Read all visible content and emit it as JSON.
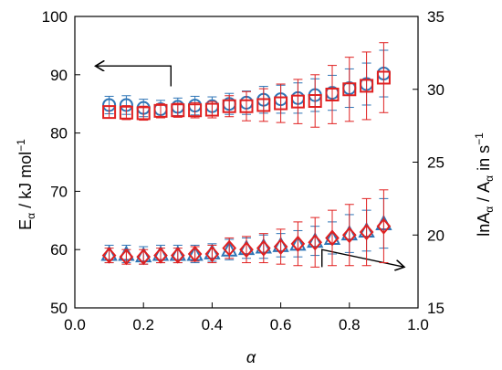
{
  "chart_data": {
    "type": "scatter",
    "xlabel": "α",
    "ylabel_left": {
      "main": "E",
      "sub": "α",
      "rest": " / kJ mol",
      "sup": "−1"
    },
    "ylabel_right": {
      "p1": "lnA",
      "s1": "α",
      "p2": " / A",
      "s2": "α",
      "p3": " in s",
      "sup": "−1"
    },
    "xlim": [
      0.0,
      1.0
    ],
    "ylim_left": [
      50,
      100
    ],
    "ylim_right": [
      15,
      35
    ],
    "x_ticks": [
      "0.0",
      "0.2",
      "0.4",
      "0.6",
      "0.8",
      "1.0"
    ],
    "y_ticks_left": [
      "50",
      "60",
      "70",
      "80",
      "90",
      "100"
    ],
    "y_ticks_right": [
      "15",
      "20",
      "25",
      "30",
      "35"
    ],
    "x": [
      0.1,
      0.15,
      0.2,
      0.25,
      0.3,
      0.35,
      0.4,
      0.45,
      0.5,
      0.55,
      0.6,
      0.65,
      0.7,
      0.75,
      0.8,
      0.85,
      0.9
    ],
    "series": [
      {
        "axis": "left",
        "marker": "circle",
        "color": "#2e75b6",
        "values": [
          84.8,
          84.8,
          84.3,
          84.1,
          84.5,
          84.7,
          84.6,
          85.0,
          85.2,
          85.7,
          85.8,
          86.0,
          86.5,
          86.9,
          87.7,
          88.4,
          90.2
        ],
        "err": [
          1.5,
          1.6,
          1.5,
          1.5,
          1.5,
          1.6,
          1.6,
          1.8,
          2.0,
          2.3,
          2.4,
          2.6,
          2.8,
          3.0,
          3.3,
          3.6,
          4.0
        ]
      },
      {
        "axis": "left",
        "marker": "square",
        "color": "#e02020",
        "values": [
          83.6,
          83.5,
          83.4,
          83.8,
          83.9,
          83.9,
          84.0,
          84.6,
          84.6,
          84.8,
          85.1,
          85.4,
          85.5,
          86.6,
          87.5,
          88.1,
          89.5
        ],
        "err": [
          1.0,
          1.2,
          1.2,
          1.2,
          1.2,
          1.3,
          1.4,
          1.8,
          2.5,
          2.8,
          3.3,
          3.8,
          4.5,
          5.0,
          5.5,
          5.8,
          6.0
        ]
      },
      {
        "axis": "right",
        "marker": "triangle",
        "color": "#2e75b6",
        "values": [
          18.7,
          18.7,
          18.6,
          18.7,
          18.7,
          18.7,
          18.8,
          19.0,
          19.1,
          19.2,
          19.3,
          19.4,
          19.6,
          19.8,
          20.1,
          20.3,
          20.8
        ],
        "err": [
          0.6,
          0.6,
          0.6,
          0.6,
          0.6,
          0.6,
          0.6,
          0.7,
          0.7,
          0.8,
          0.8,
          0.9,
          1.0,
          1.1,
          1.3,
          1.4,
          1.7
        ]
      },
      {
        "axis": "right",
        "marker": "diamond",
        "color": "#e02020",
        "values": [
          18.6,
          18.5,
          18.5,
          18.6,
          18.6,
          18.7,
          18.7,
          19.1,
          19.0,
          19.1,
          19.2,
          19.4,
          19.5,
          19.8,
          20.0,
          20.2,
          20.6
        ],
        "err": [
          0.5,
          0.5,
          0.5,
          0.5,
          0.5,
          0.5,
          0.6,
          0.7,
          0.9,
          1.0,
          1.2,
          1.5,
          1.7,
          1.9,
          2.1,
          2.3,
          2.5
        ]
      }
    ],
    "annotations": [
      {
        "type": "arrow",
        "points_to": "left-axis",
        "path": [
          [
            0.28,
            91.5
          ],
          [
            0.28,
            88.0
          ]
        ],
        "head_at": [
          0.06,
          91.5
        ]
      },
      {
        "type": "arrow",
        "points_to": "right-axis",
        "path": [
          [
            0.72,
            19.0
          ],
          [
            0.72,
            17.8
          ]
        ],
        "head_at": [
          0.96,
          17.8
        ]
      }
    ],
    "grid": false,
    "legend": "none"
  }
}
